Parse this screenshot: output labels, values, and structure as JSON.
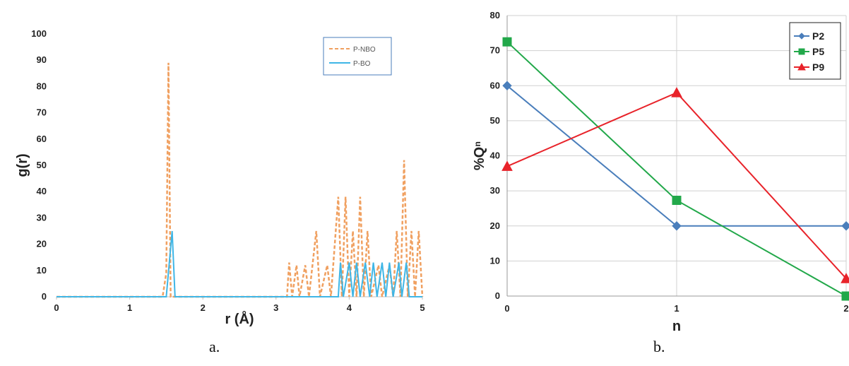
{
  "chart_data": [
    {
      "type": "line",
      "panel_label": "a.",
      "xlabel": "r (Å)",
      "ylabel": "g(r)",
      "xlim": [
        0,
        5
      ],
      "ylim": [
        0,
        100
      ],
      "x_ticks": [
        "0",
        "1",
        "2",
        "3",
        "4",
        "5"
      ],
      "y_ticks": [
        "0",
        "10",
        "20",
        "30",
        "40",
        "50",
        "60",
        "70",
        "80",
        "90",
        "100"
      ],
      "grid": false,
      "legend_position": "top-right",
      "series": [
        {
          "name": "P-NBO",
          "color": "#f0a060",
          "style": "dashed",
          "points": [
            [
              0,
              0
            ],
            [
              1.45,
              0
            ],
            [
              1.5,
              9
            ],
            [
              1.53,
              89
            ],
            [
              1.56,
              0
            ],
            [
              1.6,
              0
            ],
            [
              3.15,
              0
            ],
            [
              3.18,
              13
            ],
            [
              3.22,
              0
            ],
            [
              3.28,
              12
            ],
            [
              3.32,
              0
            ],
            [
              3.4,
              12
            ],
            [
              3.45,
              0
            ],
            [
              3.55,
              25
            ],
            [
              3.6,
              0
            ],
            [
              3.7,
              12
            ],
            [
              3.75,
              0
            ],
            [
              3.85,
              38
            ],
            [
              3.9,
              0
            ],
            [
              3.95,
              38
            ],
            [
              4.0,
              0
            ],
            [
              4.05,
              25
            ],
            [
              4.1,
              0
            ],
            [
              4.15,
              38
            ],
            [
              4.2,
              0
            ],
            [
              4.25,
              25
            ],
            [
              4.3,
              0
            ],
            [
              4.4,
              12
            ],
            [
              4.45,
              0
            ],
            [
              4.55,
              12
            ],
            [
              4.6,
              0
            ],
            [
              4.65,
              25
            ],
            [
              4.7,
              0
            ],
            [
              4.75,
              52
            ],
            [
              4.8,
              0
            ],
            [
              4.85,
              25
            ],
            [
              4.9,
              0
            ],
            [
              4.95,
              25
            ],
            [
              5.0,
              0
            ]
          ]
        },
        {
          "name": "P-BO",
          "color": "#3fb6e6",
          "style": "solid",
          "points": [
            [
              0,
              0
            ],
            [
              1.5,
              0
            ],
            [
              1.58,
              25
            ],
            [
              1.62,
              0
            ],
            [
              3.85,
              0
            ],
            [
              3.88,
              13
            ],
            [
              3.92,
              0
            ],
            [
              4.0,
              13
            ],
            [
              4.05,
              0
            ],
            [
              4.1,
              13
            ],
            [
              4.15,
              0
            ],
            [
              4.22,
              13
            ],
            [
              4.28,
              0
            ],
            [
              4.33,
              13
            ],
            [
              4.38,
              0
            ],
            [
              4.45,
              13
            ],
            [
              4.5,
              0
            ],
            [
              4.55,
              13
            ],
            [
              4.6,
              0
            ],
            [
              4.68,
              13
            ],
            [
              4.72,
              0
            ],
            [
              4.78,
              13
            ],
            [
              4.82,
              0
            ],
            [
              5.0,
              0
            ]
          ]
        }
      ]
    },
    {
      "type": "line",
      "panel_label": "b.",
      "xlabel": "n",
      "ylabel": "%Qⁿ",
      "x": [
        0,
        1,
        2
      ],
      "xlim": [
        0,
        2
      ],
      "ylim": [
        0,
        80
      ],
      "x_ticks": [
        "0",
        "1",
        "2"
      ],
      "y_ticks": [
        "0",
        "10",
        "20",
        "30",
        "40",
        "50",
        "60",
        "70",
        "80"
      ],
      "grid": true,
      "legend_position": "top-right",
      "series": [
        {
          "name": "P2",
          "color": "#4a7ebb",
          "marker": "diamond",
          "values": [
            60,
            20,
            20
          ]
        },
        {
          "name": "P5",
          "color": "#22a84a",
          "marker": "square",
          "values": [
            72.5,
            27.3,
            0
          ]
        },
        {
          "name": "P9",
          "color": "#e8232a",
          "marker": "triangle",
          "values": [
            37,
            58,
            5
          ]
        }
      ]
    }
  ]
}
